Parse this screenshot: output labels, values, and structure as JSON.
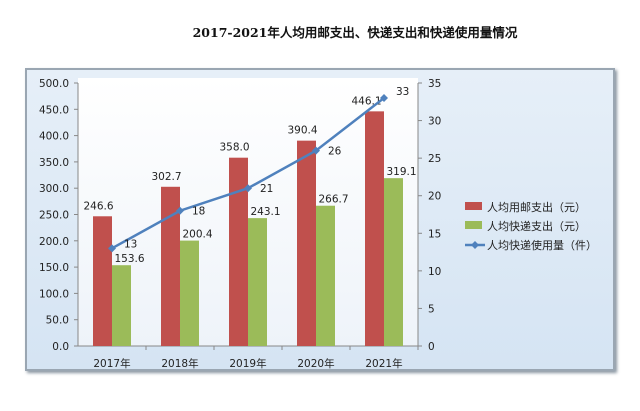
{
  "chart_data": {
    "type": "bar",
    "title": "2017-2021年人均用邮支出、快递支出和快递使用量情况",
    "categories": [
      "2017年",
      "2018年",
      "2019年",
      "2020年",
      "2021年"
    ],
    "series": [
      {
        "name": "人均用邮支出（元）",
        "type": "bar",
        "axis": "left",
        "color": "#c0504d",
        "values": [
          246.6,
          302.7,
          358.0,
          390.4,
          446.1
        ],
        "labels": [
          "246.6",
          "302.7",
          "358.0",
          "390.4",
          "446.1"
        ]
      },
      {
        "name": "人均快递支出（元）",
        "type": "bar",
        "axis": "left",
        "color": "#9bbb59",
        "values": [
          153.6,
          200.4,
          243.1,
          266.7,
          319.1
        ],
        "labels": [
          "153.6",
          "200.4",
          "243.1",
          "266.7",
          "319.1"
        ]
      },
      {
        "name": "人均快递使用量（件）",
        "type": "line",
        "axis": "right",
        "color": "#4f81bd",
        "values": [
          13,
          18,
          21,
          26,
          33
        ],
        "labels": [
          "13",
          "18",
          "21",
          "26",
          "33"
        ]
      }
    ],
    "left_axis": {
      "ylim": [
        0,
        500
      ],
      "ticks": [
        "0.0",
        "50.0",
        "100.0",
        "150.0",
        "200.0",
        "250.0",
        "300.0",
        "350.0",
        "400.0",
        "450.0",
        "500.0"
      ]
    },
    "right_axis": {
      "ylim": [
        0,
        35
      ],
      "ticks": [
        "0",
        "5",
        "10",
        "15",
        "20",
        "25",
        "30",
        "35"
      ]
    },
    "grid": false,
    "legend": "right"
  }
}
